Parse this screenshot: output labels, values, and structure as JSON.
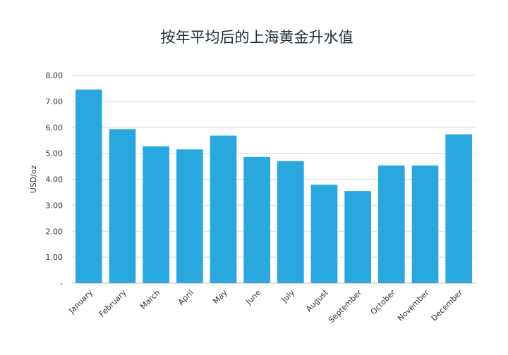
{
  "chart_data": {
    "type": "bar",
    "title": "按年平均后的上海黄金升水值",
    "ylabel": "USD/oz",
    "xlabel": "",
    "categories": [
      "January",
      "February",
      "March",
      "April",
      "May",
      "June",
      "July",
      "August",
      "September",
      "October",
      "November",
      "December"
    ],
    "values": [
      7.45,
      5.93,
      5.27,
      5.15,
      5.68,
      4.86,
      4.7,
      3.79,
      3.55,
      4.53,
      4.53,
      5.73
    ],
    "ylim": [
      0,
      8
    ],
    "yticks": [
      0,
      1,
      2,
      3,
      4,
      5,
      6,
      7,
      8
    ],
    "ytick_labels": [
      "-",
      "1.00",
      "2.00",
      "3.00",
      "4.00",
      "5.00",
      "6.00",
      "7.00",
      "8.00"
    ],
    "grid": true,
    "legend": "none",
    "bar_color": "#29a8e0"
  }
}
